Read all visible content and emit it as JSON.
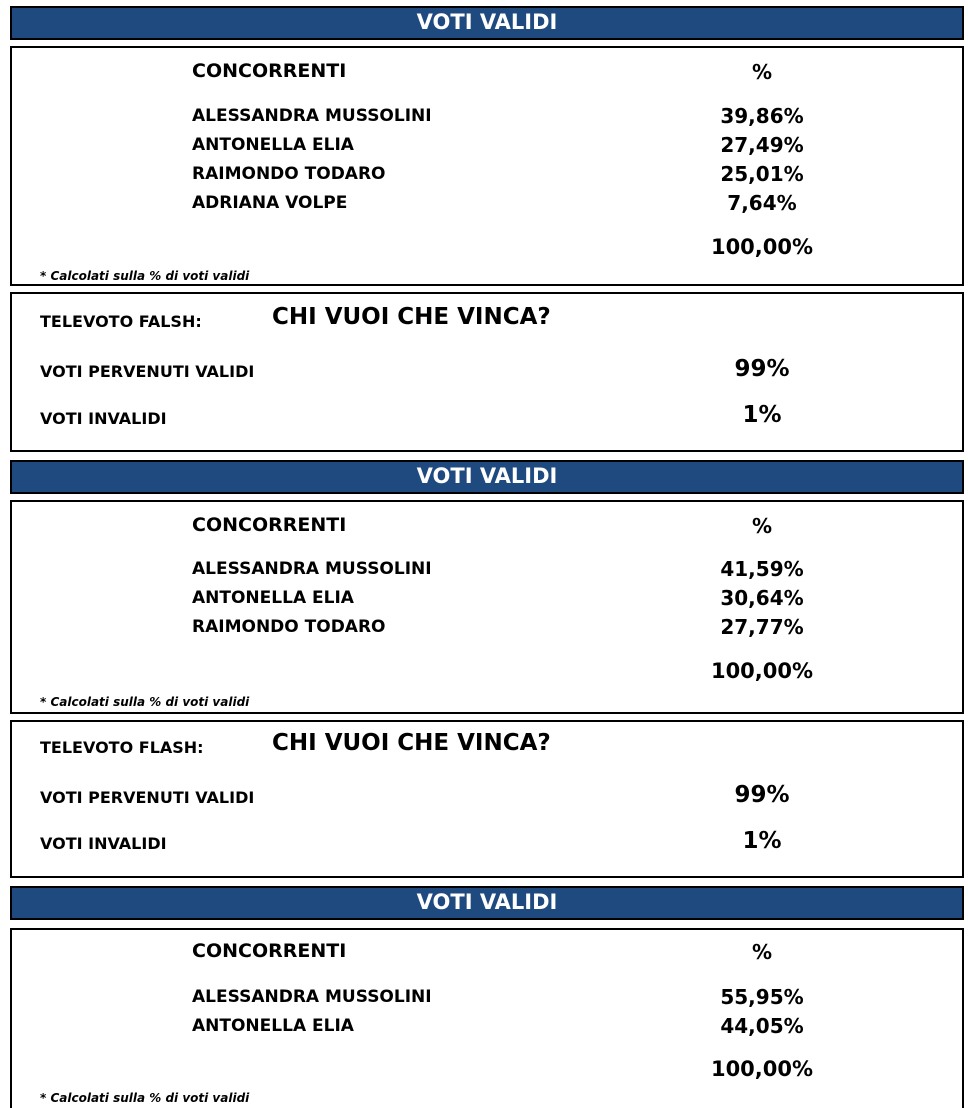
{
  "sections": [
    {
      "header": "VOTI VALIDI",
      "col_name": "CONCORRENTI",
      "col_pct": "%",
      "rows": [
        {
          "name": "ALESSANDRA MUSSOLINI",
          "pct": "39,86%"
        },
        {
          "name": "ANTONELLA ELIA",
          "pct": "27,49%"
        },
        {
          "name": "RAIMONDO TODARO",
          "pct": "25,01%"
        },
        {
          "name": "ADRIANA VOLPE",
          "pct": "7,64%"
        }
      ],
      "total": "100,00%",
      "note": "* Calcolati sulla % di voti validi"
    },
    {
      "header": "VOTI VALIDI",
      "col_name": "CONCORRENTI",
      "col_pct": "%",
      "rows": [
        {
          "name": "ALESSANDRA MUSSOLINI",
          "pct": "41,59%"
        },
        {
          "name": "ANTONELLA ELIA",
          "pct": "30,64%"
        },
        {
          "name": "RAIMONDO TODARO",
          "pct": "27,77%"
        }
      ],
      "total": "100,00%",
      "note": "* Calcolati sulla % di voti validi"
    },
    {
      "header": "VOTI VALIDI",
      "col_name": "CONCORRENTI",
      "col_pct": "%",
      "rows": [
        {
          "name": "ALESSANDRA MUSSOLINI",
          "pct": "55,95%"
        },
        {
          "name": "ANTONELLA ELIA",
          "pct": "44,05%"
        }
      ],
      "total": "100,00%",
      "note": "* Calcolati sulla % di voti validi"
    }
  ],
  "televoto": [
    {
      "label": "TELEVOTO FALSH:",
      "question": "CHI VUOI CHE VINCA?",
      "valid_label": "VOTI PERVENUTI VALIDI",
      "valid_pct": "99%",
      "invalid_label": "VOTI INVALIDI",
      "invalid_pct": "1%"
    },
    {
      "label": "TELEVOTO FLASH:",
      "question": "CHI VUOI CHE VINCA?",
      "valid_label": "VOTI PERVENUTI VALIDI",
      "valid_pct": "99%",
      "invalid_label": "VOTI INVALIDI",
      "invalid_pct": "1%"
    }
  ]
}
